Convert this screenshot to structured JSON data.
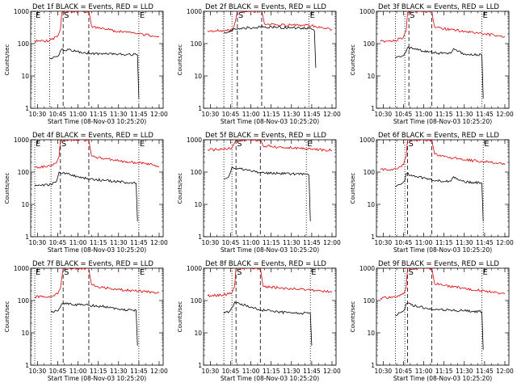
{
  "chart_data": [
    {
      "type": "line",
      "title": "Det 1f BLACK = Events, RED = LLD",
      "xlabel": "Start Time (08-Nov-03 10:25:20)",
      "ylabel": "Counts/sec",
      "x_ticks": [
        "10:30",
        "10:45",
        "11:00",
        "11:15",
        "11:30",
        "11:45",
        "12:00"
      ],
      "y_ticks": [
        "1",
        "10",
        "100",
        "1000"
      ],
      "ylim": [
        1,
        1000
      ],
      "yscale": "log",
      "grid": false,
      "legend": "title",
      "colors": {
        "events": "#000000",
        "lld": "#dd0000"
      },
      "markers": [
        {
          "label": "E",
          "x": "10:28",
          "style": "dotted"
        },
        {
          "label": "",
          "x": "10:39",
          "style": "dotted"
        },
        {
          "label": "S",
          "x": "10:49",
          "style": "dashed"
        },
        {
          "label": "",
          "x": "11:08",
          "style": "dashed"
        },
        {
          "label": "E",
          "x": "11:45",
          "style": "dotted"
        }
      ],
      "series": [
        {
          "x": [
            "10:28",
            "10:39",
            "10:45",
            "10:47",
            "10:48",
            "10:49",
            "11:08",
            "11:10",
            "11:15",
            "11:30",
            "11:45",
            "11:55",
            "12:00"
          ],
          "values": [
            118,
            125,
            170,
            280,
            900,
            1000,
            1000,
            350,
            300,
            240,
            200,
            175,
            165
          ]
        },
        {
          "x": [
            "10:39",
            "10:44",
            "10:46",
            "10:48",
            "11:09",
            "11:20",
            "11:30",
            "11:44",
            "11:45"
          ],
          "values": [
            35,
            40,
            45,
            68,
            50,
            48,
            48,
            45,
            2
          ]
        }
      ]
    },
    {
      "type": "line",
      "title": "Det 2f BLACK = Events, RED = LLD",
      "xlabel": "Start Time (08-Nov-03 10:25:20)",
      "ylabel": "Counts/sec",
      "x_ticks": [
        "10:30",
        "10:45",
        "11:00",
        "11:15",
        "11:30",
        "11:45",
        "12:00"
      ],
      "y_ticks": [
        "1",
        "10",
        "100",
        "1000"
      ],
      "ylim": [
        1,
        1000
      ],
      "yscale": "log",
      "grid": false,
      "legend": "title",
      "colors": {
        "events": "#000000",
        "lld": "#dd0000"
      },
      "markers": [
        {
          "label": "",
          "x": "10:40",
          "style": "dotted"
        },
        {
          "label": "",
          "x": "10:46",
          "style": "dotted"
        },
        {
          "label": "S",
          "x": "10:50",
          "style": "dashed"
        },
        {
          "label": "",
          "x": "11:08",
          "style": "dashed"
        },
        {
          "label": "E",
          "x": "11:43",
          "style": "dotted"
        }
      ],
      "series": [
        {
          "x": [
            "10:28",
            "10:40",
            "10:46",
            "10:48",
            "10:50",
            "11:08",
            "11:10",
            "11:20",
            "11:30",
            "11:45",
            "11:55",
            "12:00"
          ],
          "values": [
            245,
            250,
            260,
            400,
            1000,
            1000,
            420,
            380,
            370,
            360,
            300,
            275
          ]
        },
        {
          "x": [
            "10:40",
            "10:46",
            "10:48",
            "11:09",
            "11:20",
            "11:30",
            "11:43",
            "11:47",
            "11:48"
          ],
          "values": [
            220,
            240,
            290,
            330,
            320,
            315,
            300,
            250,
            18
          ]
        }
      ]
    },
    {
      "type": "line",
      "title": "Det 3f BLACK = Events, RED = LLD",
      "xlabel": "Start Time (08-Nov-03 10:25:20)",
      "ylabel": "Counts/sec",
      "x_ticks": [
        "10:30",
        "10:45",
        "11:00",
        "11:15",
        "11:30",
        "11:45",
        "12:00"
      ],
      "y_ticks": [
        "1",
        "10",
        "100",
        "1000"
      ],
      "ylim": [
        1,
        1000
      ],
      "yscale": "log",
      "grid": false,
      "legend": "title",
      "colors": {
        "events": "#000000",
        "lld": "#dd0000"
      },
      "markers": [
        {
          "label": "",
          "x": "10:39",
          "style": "dotted"
        },
        {
          "label": "",
          "x": "10:46",
          "style": "dotted"
        },
        {
          "label": "S",
          "x": "10:49",
          "style": "dashed"
        },
        {
          "label": "",
          "x": "11:06",
          "style": "dashed"
        },
        {
          "label": "E",
          "x": "11:43",
          "style": "dotted"
        }
      ],
      "series": [
        {
          "x": [
            "10:28",
            "10:39",
            "10:45",
            "10:47",
            "10:48",
            "10:49",
            "11:06",
            "11:08",
            "11:15",
            "11:30",
            "11:45",
            "11:55",
            "12:00"
          ],
          "values": [
            118,
            125,
            160,
            250,
            900,
            1000,
            1000,
            330,
            290,
            240,
            200,
            175,
            165
          ]
        },
        {
          "x": [
            "10:39",
            "10:44",
            "10:46",
            "10:48",
            "11:07",
            "11:20",
            "11:22",
            "11:30",
            "11:43",
            "11:44"
          ],
          "values": [
            35,
            42,
            50,
            75,
            52,
            50,
            70,
            48,
            45,
            2
          ]
        }
      ]
    },
    {
      "type": "line",
      "title": "Det 4f BLACK = Events, RED = LLD",
      "xlabel": "Start Time (08-Nov-03 10:25:20)",
      "ylabel": "Counts/sec",
      "x_ticks": [
        "10:30",
        "10:45",
        "11:00",
        "11:15",
        "11:30",
        "11:45",
        "12:00"
      ],
      "y_ticks": [
        "1",
        "10",
        "100",
        "1000"
      ],
      "ylim": [
        1,
        1000
      ],
      "yscale": "log",
      "grid": false,
      "legend": "title",
      "colors": {
        "events": "#000000",
        "lld": "#dd0000"
      },
      "markers": [
        {
          "label": "E",
          "x": "10:28",
          "style": "dotted"
        },
        {
          "label": "",
          "x": "10:40",
          "style": "dotted"
        },
        {
          "label": "S",
          "x": "10:47",
          "style": "dashed"
        },
        {
          "label": "",
          "x": "11:08",
          "style": "dashed"
        },
        {
          "label": "E",
          "x": "11:45",
          "style": "dotted"
        }
      ],
      "series": [
        {
          "x": [
            "10:28",
            "10:40",
            "10:44",
            "10:46",
            "10:47",
            "11:08",
            "11:10",
            "11:15",
            "11:30",
            "11:45",
            "11:55",
            "12:00"
          ],
          "values": [
            140,
            150,
            190,
            300,
            1000,
            1000,
            320,
            280,
            220,
            190,
            170,
            150
          ]
        },
        {
          "x": [
            "10:28",
            "10:40",
            "10:44",
            "10:46",
            "11:09",
            "11:20",
            "11:30",
            "11:43",
            "11:44"
          ],
          "values": [
            38,
            42,
            50,
            100,
            60,
            55,
            50,
            45,
            3
          ]
        }
      ]
    },
    {
      "type": "line",
      "title": "Det 5f BLACK = Events, RED = LLD",
      "xlabel": "Start Time (08-Nov-03 10:25:20)",
      "ylabel": "Counts/sec",
      "x_ticks": [
        "10:30",
        "10:45",
        "11:00",
        "11:15",
        "11:30",
        "11:45",
        "12:00"
      ],
      "y_ticks": [
        "1",
        "10",
        "100",
        "1000"
      ],
      "ylim": [
        1,
        1000
      ],
      "yscale": "log",
      "grid": false,
      "legend": "title",
      "colors": {
        "events": "#000000",
        "lld": "#dd0000"
      },
      "markers": [
        {
          "label": "",
          "x": "10:40",
          "style": "dotted"
        },
        {
          "label": "",
          "x": "10:46",
          "style": "dotted"
        },
        {
          "label": "S",
          "x": "10:49",
          "style": "dashed"
        },
        {
          "label": "",
          "x": "11:07",
          "style": "dashed"
        },
        {
          "label": "E",
          "x": "11:41",
          "style": "dotted"
        }
      ],
      "series": [
        {
          "x": [
            "10:28",
            "10:40",
            "10:46",
            "10:48",
            "10:49",
            "11:07",
            "11:09",
            "11:20",
            "11:30",
            "11:45",
            "11:55",
            "12:00"
          ],
          "values": [
            490,
            500,
            560,
            800,
            1000,
            1000,
            650,
            600,
            560,
            520,
            480,
            470
          ]
        },
        {
          "x": [
            "10:40",
            "10:44",
            "10:46",
            "11:08",
            "11:20",
            "11:30",
            "11:41",
            "11:43",
            "11:44"
          ],
          "values": [
            60,
            80,
            140,
            95,
            90,
            88,
            85,
            80,
            3
          ]
        }
      ]
    },
    {
      "type": "line",
      "title": "Det 6f BLACK = Events, RED = LLD",
      "xlabel": "Start Time (08-Nov-03 10:25:20)",
      "ylabel": "Counts/sec",
      "x_ticks": [
        "10:30",
        "10:45",
        "11:00",
        "11:15",
        "11:30",
        "11:45",
        "12:00"
      ],
      "y_ticks": [
        "1",
        "10",
        "100",
        "1000"
      ],
      "ylim": [
        1,
        1000
      ],
      "yscale": "log",
      "grid": false,
      "legend": "title",
      "colors": {
        "events": "#000000",
        "lld": "#dd0000"
      },
      "markers": [
        {
          "label": "",
          "x": "10:39",
          "style": "dotted"
        },
        {
          "label": "",
          "x": "10:46",
          "style": "dotted"
        },
        {
          "label": "S",
          "x": "10:48",
          "style": "dashed"
        },
        {
          "label": "",
          "x": "11:06",
          "style": "dashed"
        },
        {
          "label": "E",
          "x": "11:44",
          "style": "dotted"
        }
      ],
      "series": [
        {
          "x": [
            "10:28",
            "10:39",
            "10:45",
            "10:47",
            "10:48",
            "11:06",
            "11:08",
            "11:15",
            "11:30",
            "11:45",
            "11:55",
            "12:00"
          ],
          "values": [
            118,
            125,
            170,
            300,
            1000,
            1000,
            360,
            300,
            240,
            210,
            185,
            170
          ]
        },
        {
          "x": [
            "10:39",
            "10:44",
            "10:46",
            "10:47",
            "11:07",
            "11:20",
            "11:22",
            "11:30",
            "11:43",
            "11:44"
          ],
          "values": [
            35,
            45,
            55,
            90,
            55,
            52,
            72,
            50,
            45,
            3
          ]
        }
      ]
    },
    {
      "type": "line",
      "title": "Det 7f BLACK = Events, RED = LLD",
      "xlabel": "Start Time (08-Nov-03 10:25:20)",
      "ylabel": "Counts/sec",
      "x_ticks": [
        "10:30",
        "10:45",
        "11:00",
        "11:15",
        "11:30",
        "11:45",
        "12:00"
      ],
      "y_ticks": [
        "1",
        "10",
        "100",
        "1000"
      ],
      "ylim": [
        1,
        1000
      ],
      "yscale": "log",
      "grid": false,
      "legend": "title",
      "colors": {
        "events": "#000000",
        "lld": "#dd0000"
      },
      "markers": [
        {
          "label": "E",
          "x": "10:28",
          "style": "dotted"
        },
        {
          "label": "",
          "x": "10:40",
          "style": "dotted"
        },
        {
          "label": "S",
          "x": "10:49",
          "style": "dashed"
        },
        {
          "label": "",
          "x": "11:08",
          "style": "dashed"
        },
        {
          "label": "E",
          "x": "11:45",
          "style": "dotted"
        }
      ],
      "series": [
        {
          "x": [
            "10:28",
            "10:40",
            "10:45",
            "10:47",
            "10:49",
            "11:08",
            "11:10",
            "11:15",
            "11:30",
            "11:45",
            "11:55",
            "12:00"
          ],
          "values": [
            128,
            135,
            160,
            240,
            1000,
            1000,
            310,
            260,
            220,
            195,
            180,
            175
          ]
        },
        {
          "x": [
            "10:40",
            "10:44",
            "10:46",
            "10:48",
            "11:09",
            "11:20",
            "11:30",
            "11:43",
            "11:44"
          ],
          "values": [
            45,
            48,
            55,
            80,
            70,
            65,
            55,
            50,
            4
          ]
        }
      ]
    },
    {
      "type": "line",
      "title": "Det 8f BLACK = Events, RED = LLD",
      "xlabel": "Start Time (08-Nov-03 10:25:20)",
      "ylabel": "Counts/sec",
      "x_ticks": [
        "10:30",
        "10:45",
        "11:00",
        "11:15",
        "11:30",
        "11:45",
        "12:00"
      ],
      "y_ticks": [
        "1",
        "10",
        "100",
        "1000"
      ],
      "ylim": [
        1,
        1000
      ],
      "yscale": "log",
      "grid": false,
      "legend": "title",
      "colors": {
        "events": "#000000",
        "lld": "#dd0000"
      },
      "markers": [
        {
          "label": "",
          "x": "10:40",
          "style": "dotted"
        },
        {
          "label": "",
          "x": "10:46",
          "style": "dotted"
        },
        {
          "label": "S",
          "x": "10:49",
          "style": "dashed"
        },
        {
          "label": "",
          "x": "11:07",
          "style": "dashed"
        },
        {
          "label": "E",
          "x": "11:44",
          "style": "dotted"
        }
      ],
      "series": [
        {
          "x": [
            "10:28",
            "10:40",
            "10:46",
            "10:48",
            "10:49",
            "11:07",
            "11:09",
            "11:20",
            "11:30",
            "11:45",
            "11:55",
            "12:00"
          ],
          "values": [
            140,
            150,
            170,
            280,
            1000,
            1000,
            280,
            250,
            230,
            210,
            190,
            180
          ]
        },
        {
          "x": [
            "10:40",
            "10:44",
            "10:46",
            "10:48",
            "11:08",
            "11:20",
            "11:30",
            "11:44",
            "11:45"
          ],
          "values": [
            40,
            45,
            60,
            90,
            50,
            45,
            40,
            40,
            4
          ]
        }
      ]
    },
    {
      "type": "line",
      "title": "Det 9f BLACK = Events, RED = LLD",
      "xlabel": "Start Time (08-Nov-03 10:25:20)",
      "ylabel": "Counts/sec",
      "x_ticks": [
        "10:30",
        "10:45",
        "11:00",
        "11:15",
        "11:30",
        "11:45",
        "12:00"
      ],
      "y_ticks": [
        "1",
        "10",
        "100",
        "1000"
      ],
      "ylim": [
        1,
        1000
      ],
      "yscale": "log",
      "grid": false,
      "legend": "title",
      "colors": {
        "events": "#000000",
        "lld": "#dd0000"
      },
      "markers": [
        {
          "label": "",
          "x": "10:39",
          "style": "dotted"
        },
        {
          "label": "",
          "x": "10:46",
          "style": "dotted"
        },
        {
          "label": "S",
          "x": "10:48",
          "style": "dashed"
        },
        {
          "label": "",
          "x": "11:06",
          "style": "dashed"
        },
        {
          "label": "E",
          "x": "11:43",
          "style": "dotted"
        }
      ],
      "series": [
        {
          "x": [
            "10:28",
            "10:39",
            "10:45",
            "10:47",
            "10:48",
            "11:06",
            "11:08",
            "11:15",
            "11:30",
            "11:45",
            "11:55",
            "12:00"
          ],
          "values": [
            118,
            125,
            160,
            250,
            1000,
            1000,
            330,
            290,
            240,
            200,
            175,
            165
          ]
        },
        {
          "x": [
            "10:39",
            "10:44",
            "10:46",
            "10:47",
            "11:07",
            "11:20",
            "11:30",
            "11:43",
            "11:44"
          ],
          "values": [
            35,
            45,
            55,
            80,
            52,
            50,
            48,
            45,
            3
          ]
        }
      ]
    }
  ]
}
